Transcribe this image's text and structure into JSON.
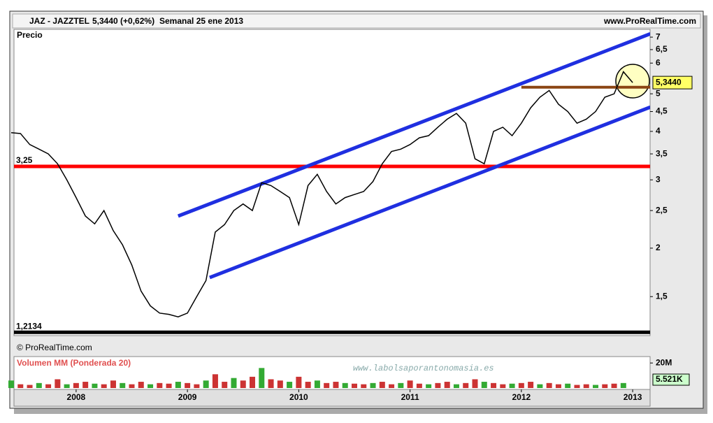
{
  "header": {
    "symbol": "JAZ - JAZZTEL",
    "quote": "5,3440 (+0,62%)",
    "period": "Semanal  25 ene 2013",
    "site": "www.ProRealTime.com"
  },
  "chart_data": {
    "type": "line",
    "title": "Precio",
    "copyright": "© ProRealTime.com",
    "watermark": "www.labolsaporantonomasia.es",
    "log_scale": true,
    "color": "#000000",
    "categories": [
      null,
      null,
      null,
      null,
      null,
      null,
      null,
      "2008",
      null,
      null,
      null,
      null,
      null,
      null,
      null,
      null,
      null,
      null,
      null,
      "2009",
      null,
      null,
      null,
      null,
      null,
      null,
      null,
      null,
      null,
      null,
      null,
      "2010",
      null,
      null,
      null,
      null,
      null,
      null,
      null,
      null,
      null,
      null,
      null,
      "2011",
      null,
      null,
      null,
      null,
      null,
      null,
      null,
      null,
      null,
      null,
      null,
      "2012",
      null,
      null,
      null,
      null,
      null,
      null,
      null,
      null,
      null,
      null,
      null,
      "2013"
    ],
    "values": [
      3.97,
      3.95,
      3.7,
      3.6,
      3.5,
      3.3,
      3.0,
      2.7,
      2.42,
      2.31,
      2.5,
      2.22,
      2.04,
      1.81,
      1.55,
      1.42,
      1.36,
      1.35,
      1.33,
      1.36,
      1.5,
      1.65,
      2.2,
      2.3,
      2.5,
      2.6,
      2.5,
      2.95,
      2.9,
      2.8,
      2.7,
      2.3,
      2.9,
      3.1,
      2.8,
      2.6,
      2.7,
      2.75,
      2.8,
      2.97,
      3.3,
      3.55,
      3.6,
      3.7,
      3.85,
      3.9,
      4.1,
      4.3,
      4.45,
      4.2,
      3.4,
      3.3,
      4.0,
      4.1,
      3.9,
      4.2,
      4.6,
      4.9,
      5.1,
      4.7,
      4.5,
      4.2,
      4.3,
      4.5,
      4.9,
      5.0,
      5.7,
      5.344
    ],
    "ylim": [
      1.19,
      7.33
    ],
    "yticks": [
      {
        "value": 1.5,
        "label": "1,5"
      },
      2,
      {
        "value": 2.5,
        "label": "2,5"
      },
      3,
      {
        "value": 3.5,
        "label": "3,5"
      },
      4,
      {
        "value": 4.5,
        "label": "4,5"
      },
      5,
      6,
      {
        "value": 6.5,
        "label": "6,5"
      },
      7
    ],
    "last_price": {
      "value": 5.344,
      "label": "5,3440"
    },
    "levels": [
      {
        "value": 3.25,
        "label": "3,25",
        "color": "#ff0000"
      },
      {
        "value": 1.2134,
        "label": "1,2134",
        "color": "#000000"
      }
    ],
    "resistance": {
      "value": 5.2,
      "from": 55,
      "color": "#8b4513"
    },
    "channel_lines": [
      {
        "x": [
          18,
          68.9
        ],
        "y": [
          2.42,
          7.14
        ],
        "color": "#1f2fe0"
      },
      {
        "x": [
          21.4,
          68.9
        ],
        "y": [
          1.68,
          4.62
        ],
        "color": "#1f2fe0"
      }
    ],
    "volume": {
      "title": "Volumen MM (Ponderada 20)",
      "values": [
        6000000,
        3000000,
        2500000,
        4000000,
        3000000,
        7000000,
        3000000,
        4000000,
        5000000,
        3500000,
        3000000,
        6000000,
        4000000,
        3000000,
        5000000,
        3000000,
        4000000,
        3500000,
        5000000,
        4000000,
        3000000,
        6000000,
        11000000,
        5000000,
        8000000,
        6000000,
        9000000,
        16000000,
        7000000,
        6000000,
        5000000,
        9000000,
        5000000,
        6000000,
        4000000,
        5000000,
        4000000,
        3500000,
        3000000,
        4000000,
        5000000,
        3000000,
        4000000,
        6000000,
        3500000,
        3000000,
        4000000,
        5000000,
        3000000,
        4000000,
        7000000,
        5000000,
        4000000,
        3000000,
        3500000,
        4000000,
        5000000,
        3000000,
        4000000,
        3000000,
        3500000,
        2500000,
        3000000,
        2500000,
        3000000,
        3500000,
        4000000,
        5521
      ],
      "value_labels_last": "5.521K",
      "color": "#cc3333",
      "ylim": [
        0,
        24000000
      ],
      "yticks": [
        {
          "value": 20000000,
          "label": "20M"
        }
      ]
    }
  }
}
